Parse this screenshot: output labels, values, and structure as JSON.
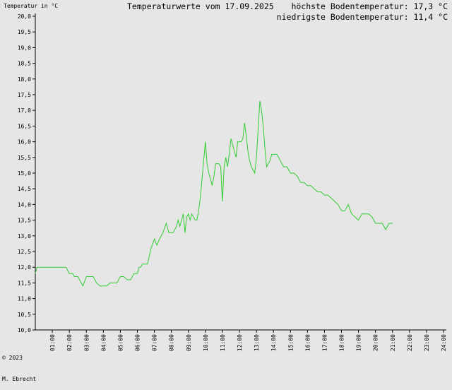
{
  "header": {
    "ylabel": "Temperatur in °C",
    "title": "Temperaturwerte vom 17.09.2025",
    "max_label": "höchste Bodentemperatur: 17,3 °C",
    "min_label": "niedrigste Bodentemperatur: 11,4 °C"
  },
  "footer": {
    "copyright_line1": "© 2023",
    "copyright_line2": "M. Ebrecht"
  },
  "chart_data": {
    "type": "line",
    "title": "Temperaturwerte vom 17.09.2025",
    "ylabel": "Temperatur in °C",
    "xlabel": "",
    "ylim": [
      10.0,
      20.0
    ],
    "xlim": [
      0,
      24
    ],
    "y_ticks": [
      "10,0",
      "10,5",
      "11,0",
      "11,5",
      "12,0",
      "12,5",
      "13,0",
      "13,5",
      "14,0",
      "14,5",
      "15,0",
      "15,5",
      "16,0",
      "16,5",
      "17,0",
      "17,5",
      "18,0",
      "18,5",
      "19,0",
      "19,5",
      "20,0"
    ],
    "x_ticks": [
      "01:00",
      "02:00",
      "03:00",
      "04:00",
      "05:00",
      "06:00",
      "07:00",
      "08:00",
      "09:00",
      "10:00",
      "11:00",
      "12:00",
      "13:00",
      "14:00",
      "15:00",
      "16:00",
      "17:00",
      "18:00",
      "19:00",
      "20:00",
      "21:00",
      "22:00",
      "23:00",
      "24:00"
    ],
    "grid": false,
    "line_color": "#33cc33",
    "series": [
      {
        "x": [
          0.0,
          0.1,
          0.3,
          0.6,
          0.9,
          1.2,
          1.5,
          1.7,
          1.8,
          2.0,
          2.2,
          2.3,
          2.5,
          2.7,
          2.8,
          3.0,
          3.2,
          3.4,
          3.6,
          3.8,
          4.0,
          4.2,
          4.4,
          4.6,
          4.8,
          5.0,
          5.2,
          5.4,
          5.6,
          5.8,
          6.0,
          6.1,
          6.2,
          6.3,
          6.45,
          6.6,
          6.8,
          7.0,
          7.15,
          7.3,
          7.5,
          7.7,
          7.85,
          8.0,
          8.1,
          8.2,
          8.3,
          8.4,
          8.5,
          8.6,
          8.7,
          8.8,
          8.9,
          9.0,
          9.1,
          9.2,
          9.3,
          9.4,
          9.5,
          9.6,
          9.7,
          9.8,
          9.9,
          10.0,
          10.1,
          10.2,
          10.3,
          10.4,
          10.5,
          10.6,
          10.7,
          10.8,
          10.9,
          11.0,
          11.1,
          11.2,
          11.3,
          11.4,
          11.5,
          11.6,
          11.7,
          11.8,
          11.9,
          12.0,
          12.1,
          12.2,
          12.3,
          12.4,
          12.5,
          12.6,
          12.7,
          12.8,
          12.9,
          13.0,
          13.1,
          13.2,
          13.3,
          13.4,
          13.5,
          13.6,
          13.7,
          13.8,
          13.9,
          14.0,
          14.2,
          14.4,
          14.6,
          14.8,
          15.0,
          15.2,
          15.4,
          15.6,
          15.8,
          16.0,
          16.2,
          16.4,
          16.6,
          16.8,
          17.0,
          17.2,
          17.4,
          17.6,
          17.8,
          18.0,
          18.2,
          18.4,
          18.6,
          18.8,
          19.0,
          19.2,
          19.4,
          19.6,
          19.8,
          20.0,
          20.2,
          20.4,
          20.6,
          20.8,
          21.0
        ],
        "y": [
          11.8,
          12.0,
          12.0,
          12.0,
          12.0,
          12.0,
          12.0,
          12.0,
          12.0,
          11.8,
          11.8,
          11.7,
          11.7,
          11.5,
          11.4,
          11.7,
          11.7,
          11.7,
          11.5,
          11.4,
          11.4,
          11.4,
          11.5,
          11.5,
          11.5,
          11.7,
          11.7,
          11.6,
          11.6,
          11.8,
          11.8,
          12.0,
          12.0,
          12.1,
          12.1,
          12.1,
          12.6,
          12.9,
          12.7,
          12.9,
          13.1,
          13.4,
          13.1,
          13.1,
          13.1,
          13.2,
          13.3,
          13.5,
          13.3,
          13.5,
          13.7,
          13.1,
          13.6,
          13.7,
          13.5,
          13.7,
          13.6,
          13.5,
          13.5,
          13.8,
          14.2,
          14.8,
          15.4,
          16.0,
          15.3,
          15.0,
          14.8,
          14.6,
          14.9,
          15.3,
          15.3,
          15.3,
          15.2,
          14.1,
          15.2,
          15.5,
          15.2,
          15.6,
          16.1,
          15.9,
          15.7,
          15.5,
          16.0,
          16.0,
          16.0,
          16.1,
          16.6,
          16.2,
          15.7,
          15.4,
          15.2,
          15.1,
          15.0,
          15.5,
          16.4,
          17.3,
          17.0,
          16.5,
          15.8,
          15.2,
          15.3,
          15.4,
          15.6,
          15.6,
          15.6,
          15.4,
          15.2,
          15.2,
          15.0,
          15.0,
          14.9,
          14.7,
          14.7,
          14.6,
          14.6,
          14.5,
          14.4,
          14.4,
          14.3,
          14.3,
          14.2,
          14.1,
          14.0,
          13.8,
          13.8,
          14.0,
          13.7,
          13.6,
          13.5,
          13.7,
          13.7,
          13.7,
          13.6,
          13.4,
          13.4,
          13.4,
          13.2,
          13.4,
          13.4
        ]
      }
    ]
  }
}
